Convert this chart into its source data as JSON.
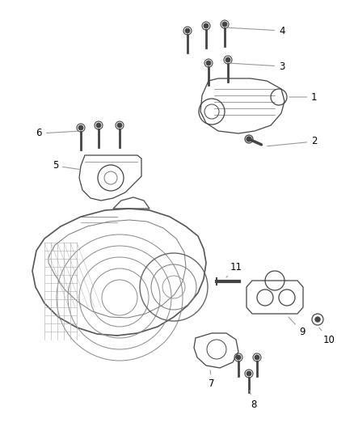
{
  "background_color": "#ffffff",
  "line_color": "#aaaaaa",
  "dark_color": "#444444",
  "mid_color": "#777777",
  "label_fontsize": 8.5,
  "label_color": "#000000",
  "figsize": [
    4.38,
    5.33
  ],
  "dpi": 100
}
